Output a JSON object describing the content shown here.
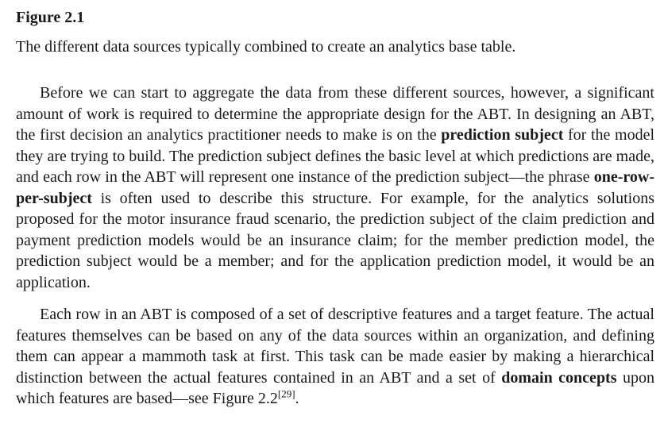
{
  "figure": {
    "label": "Figure 2.1",
    "caption": "The different data sources typically combined to create an analytics base table."
  },
  "paragraph1": {
    "t1": "Before we can start to aggregate the data from these different sources, however, a significant amount of work is required to determine the appropriate design for the ABT. In designing an ABT, the first decision an analytics practitioner needs to make is on the ",
    "b1": "prediction subject",
    "t2": " for the model they are trying to build. The prediction subject defines the basic level at which predictions are made, and each row in the ABT will represent one instance of the prediction subject—the phrase ",
    "b2": "one-row-per-subject",
    "t3": " is often used to describe this structure. For example, for the analytics solutions proposed for the motor insurance fraud scenario, the prediction subject of the claim prediction and payment prediction models would be an insurance claim; for the member prediction model, the prediction subject would be a member; and for the application prediction model, it would be an application."
  },
  "paragraph2": {
    "t1": "Each row in an ABT is composed of a set of descriptive features and a target feature. The actual features themselves can be based on any of the data sources within an organization, and defining them can appear a mammoth task at first. This task can be made easier by making a hierarchical distinction between the actual features contained in an ABT and a set of ",
    "b1": "domain concepts",
    "t2": " upon which features are based—see Figure 2.2",
    "ref": "[29]",
    "t3": "."
  }
}
